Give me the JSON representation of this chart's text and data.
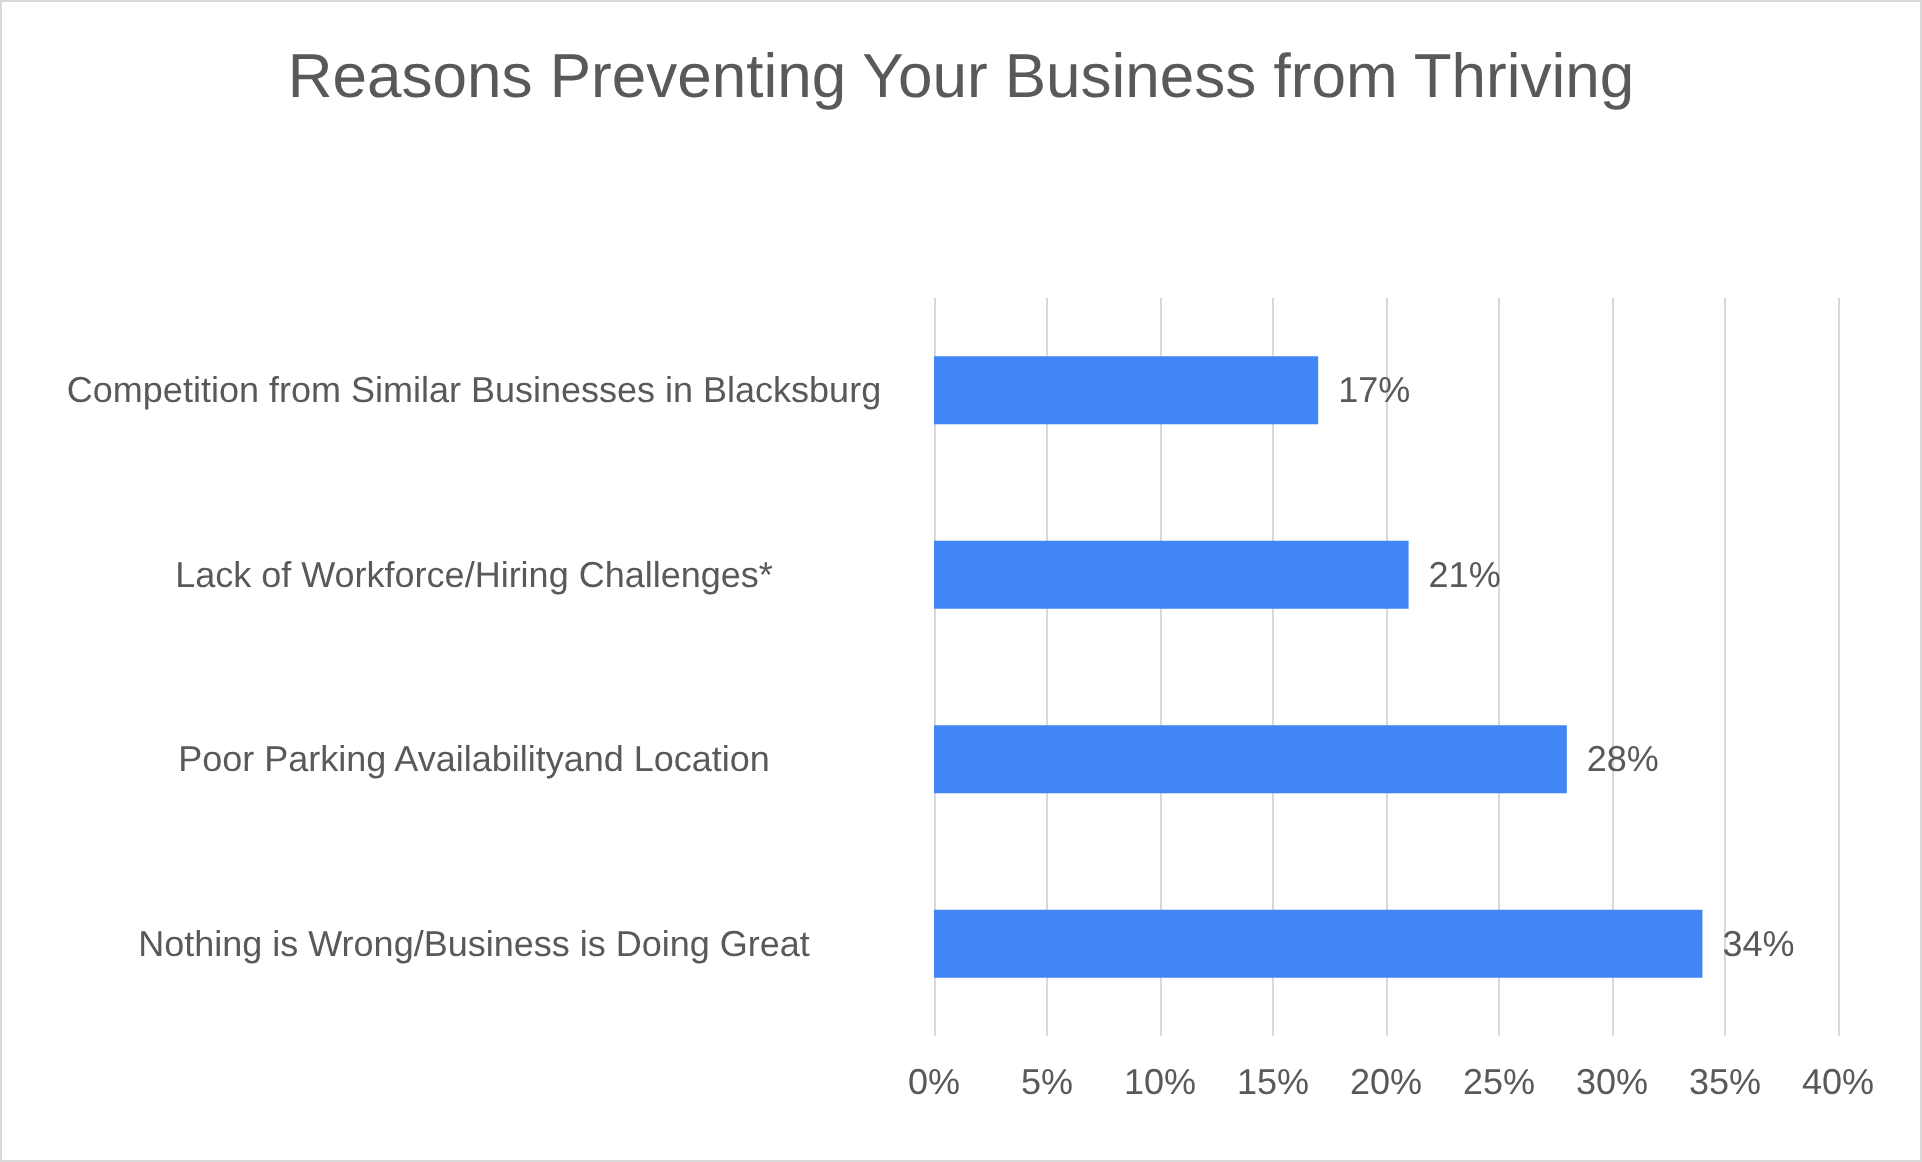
{
  "chart_data": {
    "type": "bar",
    "orientation": "horizontal",
    "title": "Reasons Preventing Your Business from Thriving",
    "categories": [
      "Competition from Similar Businesses in Blacksburg",
      "Lack of Workforce/Hiring Challenges*",
      "Poor Parking Availabilityand Location",
      "Nothing is Wrong/Business is Doing Great"
    ],
    "values": [
      17,
      21,
      28,
      34
    ],
    "color": "#4285f4",
    "value_labels": [
      "17%",
      "21%",
      "28%",
      "34%"
    ],
    "xlim": [
      0,
      40
    ],
    "xticks": [
      {
        "value": 0,
        "label": "0%"
      },
      {
        "value": 5,
        "label": "5%"
      },
      {
        "value": 10,
        "label": "10%"
      },
      {
        "value": 15,
        "label": "15%"
      },
      {
        "value": 20,
        "label": "20%"
      },
      {
        "value": 25,
        "label": "25%"
      },
      {
        "value": 30,
        "label": "30%"
      },
      {
        "value": 35,
        "label": "35%"
      },
      {
        "value": 40,
        "label": "40%"
      }
    ],
    "grid": "x"
  }
}
